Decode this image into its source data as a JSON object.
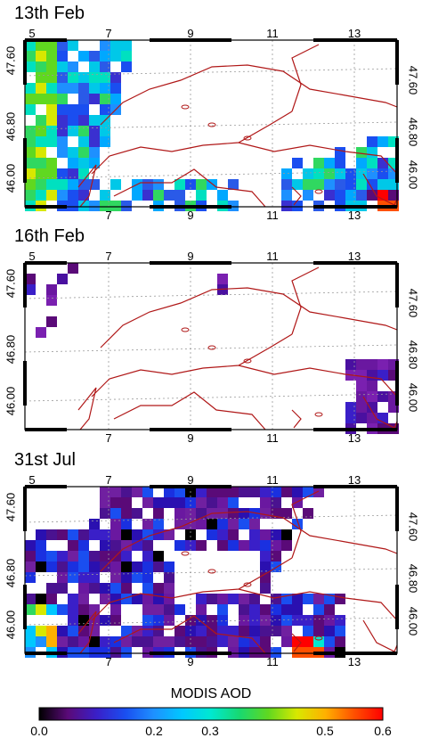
{
  "panels": [
    {
      "title": "13th Feb",
      "pixel_palette": "feb13"
    },
    {
      "title": "16th Feb",
      "pixel_palette": "feb16"
    },
    {
      "title": "31st Jul",
      "pixel_palette": "jul31"
    }
  ],
  "lon_ticks_top": [
    "5",
    "7",
    "9",
    "11",
    "13"
  ],
  "lon_ticks_bottom": [
    "7",
    "9",
    "11",
    "13"
  ],
  "lat_ticks": [
    "47.60",
    "46.80",
    "46.00"
  ],
  "colorbar": {
    "title": "MODIS AOD",
    "labels": [
      "0.0",
      "0.2",
      "0.3",
      "0.5",
      "0.6"
    ],
    "colors": [
      "#000000",
      "#5a0a78",
      "#3a1fc8",
      "#1a4ef0",
      "#1e90ff",
      "#00c8ff",
      "#00e8d0",
      "#18d870",
      "#60d820",
      "#d8e800",
      "#ffb000",
      "#ff5000",
      "#ff0000"
    ]
  },
  "colors": {
    "border": "#b01818",
    "grid": "#9a9a9a"
  }
}
